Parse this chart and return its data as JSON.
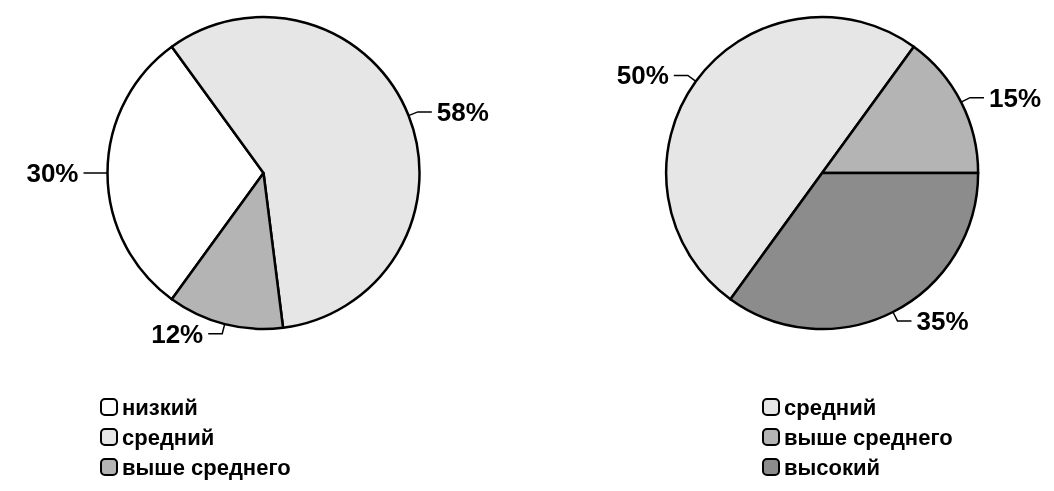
{
  "chart_data": [
    {
      "type": "pie",
      "categories": [
        "низкий",
        "средний",
        "выше среднего"
      ],
      "values": [
        30,
        58,
        12
      ],
      "value_labels": [
        "30%",
        "58%",
        "12%"
      ],
      "colors": [
        "#ffffff",
        "#e6e6e6",
        "#b4b4b4"
      ],
      "legend": "bottom left"
    },
    {
      "type": "pie",
      "categories": [
        "средний",
        "выше среднего",
        "высокий"
      ],
      "values": [
        50,
        15,
        35
      ],
      "value_labels": [
        "50%",
        "15%",
        "35%"
      ],
      "colors": [
        "#e6e6e6",
        "#b4b4b4",
        "#8c8c8c"
      ],
      "legend": "bottom right"
    }
  ]
}
